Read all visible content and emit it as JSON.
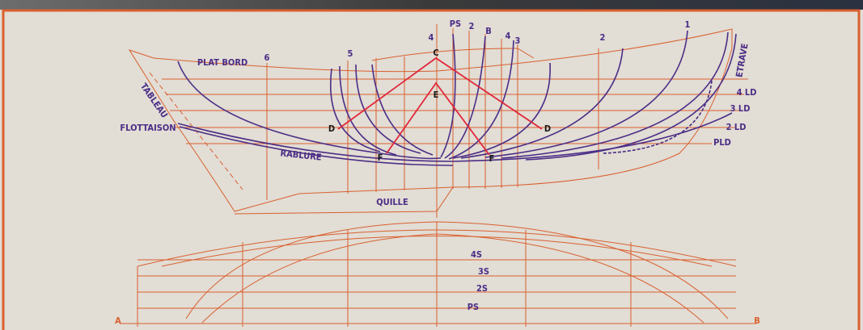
{
  "station_labels": [
    "4",
    "PS",
    "2",
    "B",
    "4",
    "3",
    "2",
    "1",
    "5",
    "6"
  ],
  "part_labels": [
    "PLAT BORD",
    "TABLEAU",
    "FLOTTAISON",
    "RABLURE",
    "QUILLE",
    "ETRAVE"
  ],
  "point_labels": [
    "C",
    "E",
    "D",
    "D",
    "F",
    "F"
  ],
  "waterline_labels": [
    "4 LD",
    "3 LD",
    "2 LD",
    "PLD"
  ],
  "section_labels": [
    "4S",
    "3S",
    "2S",
    "PS"
  ],
  "baseline_labels": [
    "A",
    "B"
  ]
}
